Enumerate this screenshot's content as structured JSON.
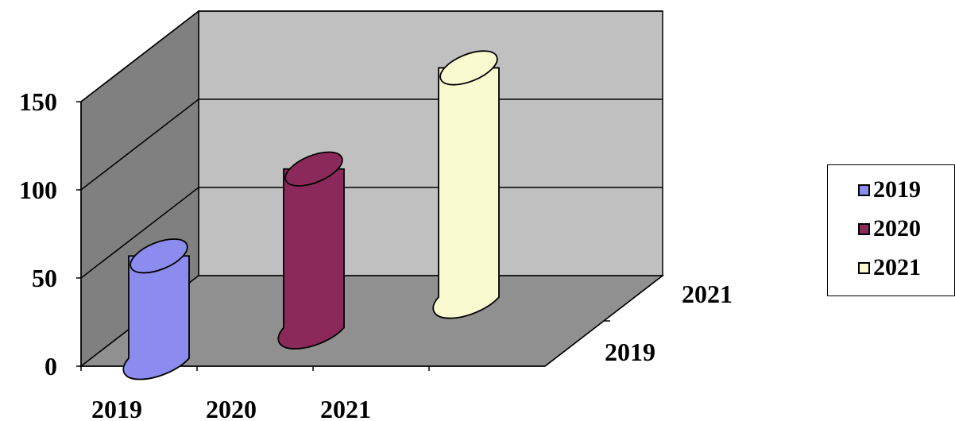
{
  "chart_data": {
    "type": "bar",
    "style": "3d-cylinder",
    "categories": [
      "2019",
      "2020",
      "2021"
    ],
    "series": [
      {
        "name": "2019",
        "values": [
          58,
          null,
          null
        ],
        "color": "#8c8cf0"
      },
      {
        "name": "2020",
        "values": [
          null,
          90,
          null
        ],
        "color": "#8b2a5a"
      },
      {
        "name": "2021",
        "values": [
          null,
          null,
          130
        ],
        "color": "#fafad0"
      }
    ],
    "depth_labels": [
      "2019",
      "2021"
    ],
    "ylim": [
      0,
      150
    ],
    "yticks": [
      "0",
      "50",
      "100",
      "150"
    ],
    "grid": true,
    "legend_position": "right",
    "wall_color": "#c0c0c0",
    "side_wall_color": "#808080",
    "floor_color": "#909090"
  }
}
